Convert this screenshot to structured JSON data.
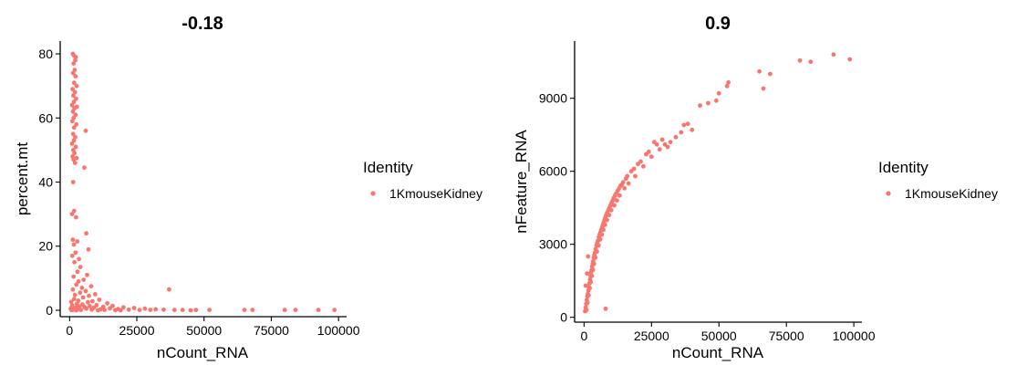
{
  "chart_data": [
    {
      "type": "scatter",
      "title": "-0.18",
      "xlabel": "nCount_RNA",
      "ylabel": "percent.mt",
      "xlim": [
        -3500,
        103000
      ],
      "ylim": [
        -2,
        84
      ],
      "xticks": [
        0,
        25000,
        50000,
        75000,
        100000
      ],
      "xtick_labels": [
        "0",
        "25000",
        "50000",
        "75000",
        "100000"
      ],
      "yticks": [
        0,
        20,
        40,
        60,
        80
      ],
      "ytick_labels": [
        "0",
        "20",
        "40",
        "60",
        "80"
      ],
      "grid": false,
      "legend": {
        "title": "Identity",
        "position": "right"
      },
      "series": [
        {
          "name": "1KmouseKidney",
          "color": "#F8766D",
          "points": [
            [
              1200,
              80
            ],
            [
              1600,
              79.5
            ],
            [
              2300,
              79
            ],
            [
              2100,
              78
            ],
            [
              1500,
              77
            ],
            [
              1900,
              75
            ],
            [
              1300,
              74
            ],
            [
              2200,
              73
            ],
            [
              1700,
              71
            ],
            [
              2600,
              70
            ],
            [
              1100,
              69
            ],
            [
              2000,
              68
            ],
            [
              1400,
              67
            ],
            [
              2400,
              66
            ],
            [
              1600,
              65
            ],
            [
              900,
              64
            ],
            [
              2700,
              63.5
            ],
            [
              1800,
              63
            ],
            [
              1200,
              62
            ],
            [
              2200,
              61
            ],
            [
              1500,
              60
            ],
            [
              1000,
              59
            ],
            [
              2500,
              58
            ],
            [
              1700,
              57
            ],
            [
              6000,
              56
            ],
            [
              1300,
              55
            ],
            [
              2100,
              54
            ],
            [
              1600,
              53
            ],
            [
              900,
              52
            ],
            [
              2300,
              51
            ],
            [
              1400,
              50
            ],
            [
              1800,
              49
            ],
            [
              1100,
              48
            ],
            [
              2600,
              47.5
            ],
            [
              1500,
              47
            ],
            [
              2000,
              46
            ],
            [
              5500,
              44.5
            ],
            [
              1300,
              40
            ],
            [
              1700,
              31
            ],
            [
              900,
              30
            ],
            [
              2400,
              29
            ],
            [
              6200,
              24
            ],
            [
              1200,
              22
            ],
            [
              2800,
              21.5
            ],
            [
              1600,
              20.5
            ],
            [
              7000,
              19
            ],
            [
              2200,
              18
            ],
            [
              1000,
              17
            ],
            [
              3500,
              16
            ],
            [
              1800,
              15
            ],
            [
              4000,
              13.5
            ],
            [
              2900,
              12
            ],
            [
              6500,
              11
            ],
            [
              1500,
              10.5
            ],
            [
              5200,
              9.5
            ],
            [
              3300,
              9
            ],
            [
              2500,
              8
            ],
            [
              8000,
              7.5
            ],
            [
              4600,
              7
            ],
            [
              1200,
              6.5
            ],
            [
              6000,
              6
            ],
            [
              3900,
              5.5
            ],
            [
              9500,
              5
            ],
            [
              2000,
              4.8
            ],
            [
              7200,
              4.5
            ],
            [
              37000,
              6.5
            ],
            [
              5000,
              4
            ],
            [
              1700,
              3.5
            ],
            [
              11000,
              3.3
            ],
            [
              3200,
              3
            ],
            [
              8500,
              2.8
            ],
            [
              600,
              2.6
            ],
            [
              6800,
              2.5
            ],
            [
              14000,
              2.2
            ],
            [
              2700,
              2
            ],
            [
              4800,
              1.8
            ],
            [
              10000,
              1.6
            ],
            [
              1000,
              1.5
            ],
            [
              16000,
              1.4
            ],
            [
              7500,
              1.3
            ],
            [
              3600,
              1.2
            ],
            [
              12500,
              1.1
            ],
            [
              800,
              1
            ],
            [
              5600,
              1
            ],
            [
              20000,
              0.9
            ],
            [
              9000,
              0.8
            ],
            [
              2300,
              0.8
            ],
            [
              24000,
              0.7
            ],
            [
              15000,
              0.6
            ],
            [
              400,
              0.5
            ],
            [
              6200,
              0.5
            ],
            [
              28000,
              0.5
            ],
            [
              18000,
              0.4
            ],
            [
              3000,
              0.4
            ],
            [
              11500,
              0.3
            ],
            [
              32000,
              0.3
            ],
            [
              22000,
              0.2
            ],
            [
              1500,
              0.2
            ],
            [
              8200,
              0.2
            ],
            [
              35000,
              0.2
            ],
            [
              13000,
              0.1
            ],
            [
              26000,
              0.1
            ],
            [
              4200,
              0.1
            ],
            [
              30000,
              0.1
            ],
            [
              700,
              0.05
            ],
            [
              17000,
              0.05
            ],
            [
              39000,
              0.1
            ],
            [
              42000,
              0.1
            ],
            [
              47000,
              0.1
            ],
            [
              52000,
              0.1
            ],
            [
              65000,
              0.1
            ],
            [
              68000,
              0.1
            ],
            [
              80000,
              0.1
            ],
            [
              84000,
              0.1
            ],
            [
              92500,
              0.1
            ],
            [
              98500,
              0.1
            ],
            [
              19000,
              0.0
            ],
            [
              45000,
              0.0
            ],
            [
              2500,
              0.0
            ],
            [
              10500,
              0.0
            ]
          ]
        }
      ]
    },
    {
      "type": "scatter",
      "title": "0.9",
      "xlabel": "nCount_RNA",
      "ylabel": "nFeature_RNA",
      "xlim": [
        -3500,
        103000
      ],
      "ylim": [
        -200,
        11350
      ],
      "xticks": [
        0,
        25000,
        50000,
        75000,
        100000
      ],
      "xtick_labels": [
        "0",
        "25000",
        "50000",
        "75000",
        "100000"
      ],
      "yticks": [
        0,
        3000,
        6000,
        9000
      ],
      "ytick_labels": [
        "0",
        "3000",
        "6000",
        "9000"
      ],
      "grid": false,
      "legend": {
        "title": "Identity",
        "position": "right"
      },
      "series": [
        {
          "name": "1KmouseKidney",
          "color": "#F8766D",
          "points": [
            [
              400,
              250
            ],
            [
              600,
              400
            ],
            [
              800,
              550
            ],
            [
              1000,
              700
            ],
            [
              1200,
              850
            ],
            [
              900,
              300
            ],
            [
              1400,
              950
            ],
            [
              1600,
              1100
            ],
            [
              1300,
              600
            ],
            [
              1800,
              1250
            ],
            [
              2000,
              1400
            ],
            [
              1700,
              900
            ],
            [
              2200,
              1550
            ],
            [
              2400,
              1700
            ],
            [
              2100,
              1200
            ],
            [
              2600,
              1850
            ],
            [
              2800,
              1950
            ],
            [
              2500,
              1450
            ],
            [
              3000,
              2100
            ],
            [
              3200,
              2200
            ],
            [
              2900,
              1700
            ],
            [
              3400,
              2300
            ],
            [
              3600,
              2450
            ],
            [
              3300,
              1950
            ],
            [
              3800,
              2550
            ],
            [
              4000,
              2650
            ],
            [
              3700,
              2200
            ],
            [
              4300,
              2800
            ],
            [
              4600,
              2950
            ],
            [
              4200,
              2450
            ],
            [
              4900,
              3050
            ],
            [
              5200,
              3150
            ],
            [
              4800,
              2700
            ],
            [
              5500,
              3300
            ],
            [
              5800,
              3400
            ],
            [
              5400,
              2950
            ],
            [
              6100,
              3500
            ],
            [
              6400,
              3600
            ],
            [
              6000,
              3200
            ],
            [
              6700,
              3700
            ],
            [
              7000,
              3800
            ],
            [
              6600,
              3400
            ],
            [
              7300,
              3900
            ],
            [
              7600,
              4000
            ],
            [
              7200,
              3600
            ],
            [
              7900,
              4100
            ],
            [
              8200,
              4200
            ],
            [
              7800,
              3800
            ],
            [
              8600,
              4300
            ],
            [
              9000,
              4400
            ],
            [
              8500,
              4000
            ],
            [
              9400,
              4500
            ],
            [
              9800,
              4600
            ],
            [
              9300,
              4200
            ],
            [
              10200,
              4700
            ],
            [
              10600,
              4800
            ],
            [
              10100,
              4400
            ],
            [
              11000,
              4900
            ],
            [
              11500,
              5000
            ],
            [
              11200,
              4600
            ],
            [
              12000,
              5100
            ],
            [
              12500,
              5200
            ],
            [
              12200,
              4800
            ],
            [
              13000,
              5300
            ],
            [
              13500,
              5400
            ],
            [
              13200,
              5000
            ],
            [
              14000,
              5450
            ],
            [
              14500,
              5550
            ],
            [
              15000,
              5300
            ],
            [
              15500,
              5700
            ],
            [
              16000,
              5800
            ],
            [
              16500,
              5500
            ],
            [
              17500,
              6000
            ],
            [
              18500,
              6100
            ],
            [
              19000,
              5800
            ],
            [
              20000,
              6300
            ],
            [
              21000,
              6400
            ],
            [
              22000,
              6200
            ],
            [
              23000,
              6700
            ],
            [
              24000,
              6800
            ],
            [
              25000,
              6600
            ],
            [
              26000,
              7200
            ],
            [
              27000,
              7100
            ],
            [
              28000,
              6900
            ],
            [
              29000,
              7300
            ],
            [
              30000,
              7100
            ],
            [
              31000,
              7000
            ],
            [
              32000,
              7200
            ],
            [
              34000,
              7400
            ],
            [
              36000,
              7600
            ],
            [
              37000,
              7900
            ],
            [
              38500,
              7950
            ],
            [
              40000,
              7700
            ],
            [
              43000,
              8700
            ],
            [
              46000,
              8800
            ],
            [
              49000,
              8900
            ],
            [
              50000,
              9200
            ],
            [
              53000,
              9500
            ],
            [
              53500,
              9650
            ],
            [
              65000,
              10100
            ],
            [
              66500,
              9400
            ],
            [
              69000,
              10000
            ],
            [
              80000,
              10550
            ],
            [
              84000,
              10500
            ],
            [
              92500,
              10800
            ],
            [
              98500,
              10600
            ],
            [
              8000,
              350
            ],
            [
              600,
              1300
            ],
            [
              1100,
              1800
            ],
            [
              1500,
              2500
            ]
          ]
        }
      ]
    }
  ]
}
